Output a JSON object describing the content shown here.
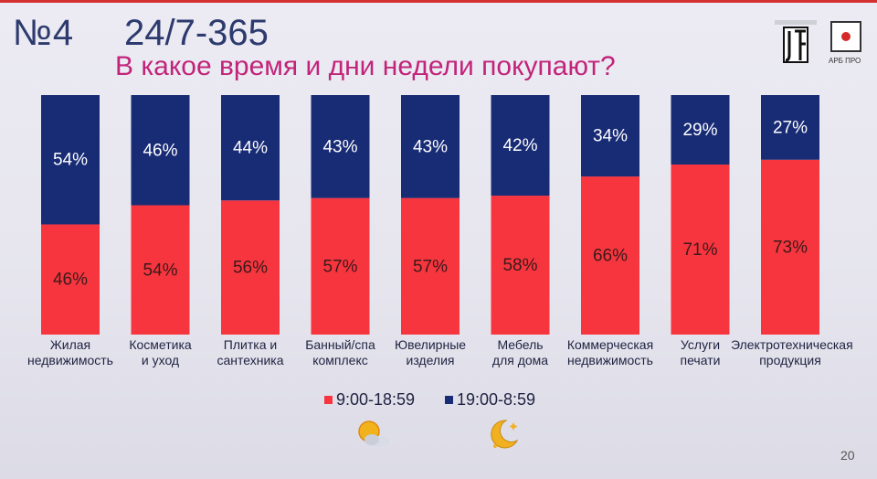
{
  "slide": {
    "number": "№4",
    "subtitle": "24/7-365",
    "page": "20"
  },
  "logos": {
    "left_logo": "jf-logo",
    "right_logo_text": "АРБ ПРО"
  },
  "chart_data": {
    "type": "bar",
    "stacked": true,
    "percent": true,
    "title": "В какое время и дни недели покупают?",
    "categories": [
      [
        "Жилая",
        "недвижимость"
      ],
      [
        "Косметика",
        "и уход"
      ],
      [
        "Плитка и",
        "сантехника"
      ],
      [
        "Банный/спа",
        "комплекс"
      ],
      [
        "Ювелирные",
        "изделия"
      ],
      [
        "Мебель",
        "для дома"
      ],
      [
        "Коммерческая",
        "недвижимость"
      ],
      [
        "Услуги",
        "печати"
      ],
      [
        "Электротехническая",
        "продукция"
      ]
    ],
    "series": [
      {
        "name": "9:00-18:59",
        "color": "#f7353f",
        "values": [
          46,
          54,
          56,
          57,
          57,
          58,
          66,
          71,
          73
        ]
      },
      {
        "name": "19:00-8:59",
        "color": "#182b75",
        "values": [
          54,
          46,
          44,
          43,
          43,
          42,
          34,
          29,
          27
        ]
      }
    ],
    "labels_series_0": [
      "46%",
      "54%",
      "56%",
      "57%",
      "57%",
      "58%",
      "66%",
      "71%",
      "73%"
    ],
    "labels_series_1": [
      "54%",
      "46%",
      "44%",
      "43%",
      "43%",
      "42%",
      "34%",
      "29%",
      "27%"
    ],
    "ylim": [
      0,
      100
    ],
    "grid": false,
    "legend_position": "bottom-center",
    "legend_icons": [
      "sun-cloud-icon",
      "moon-stars-icon"
    ]
  }
}
